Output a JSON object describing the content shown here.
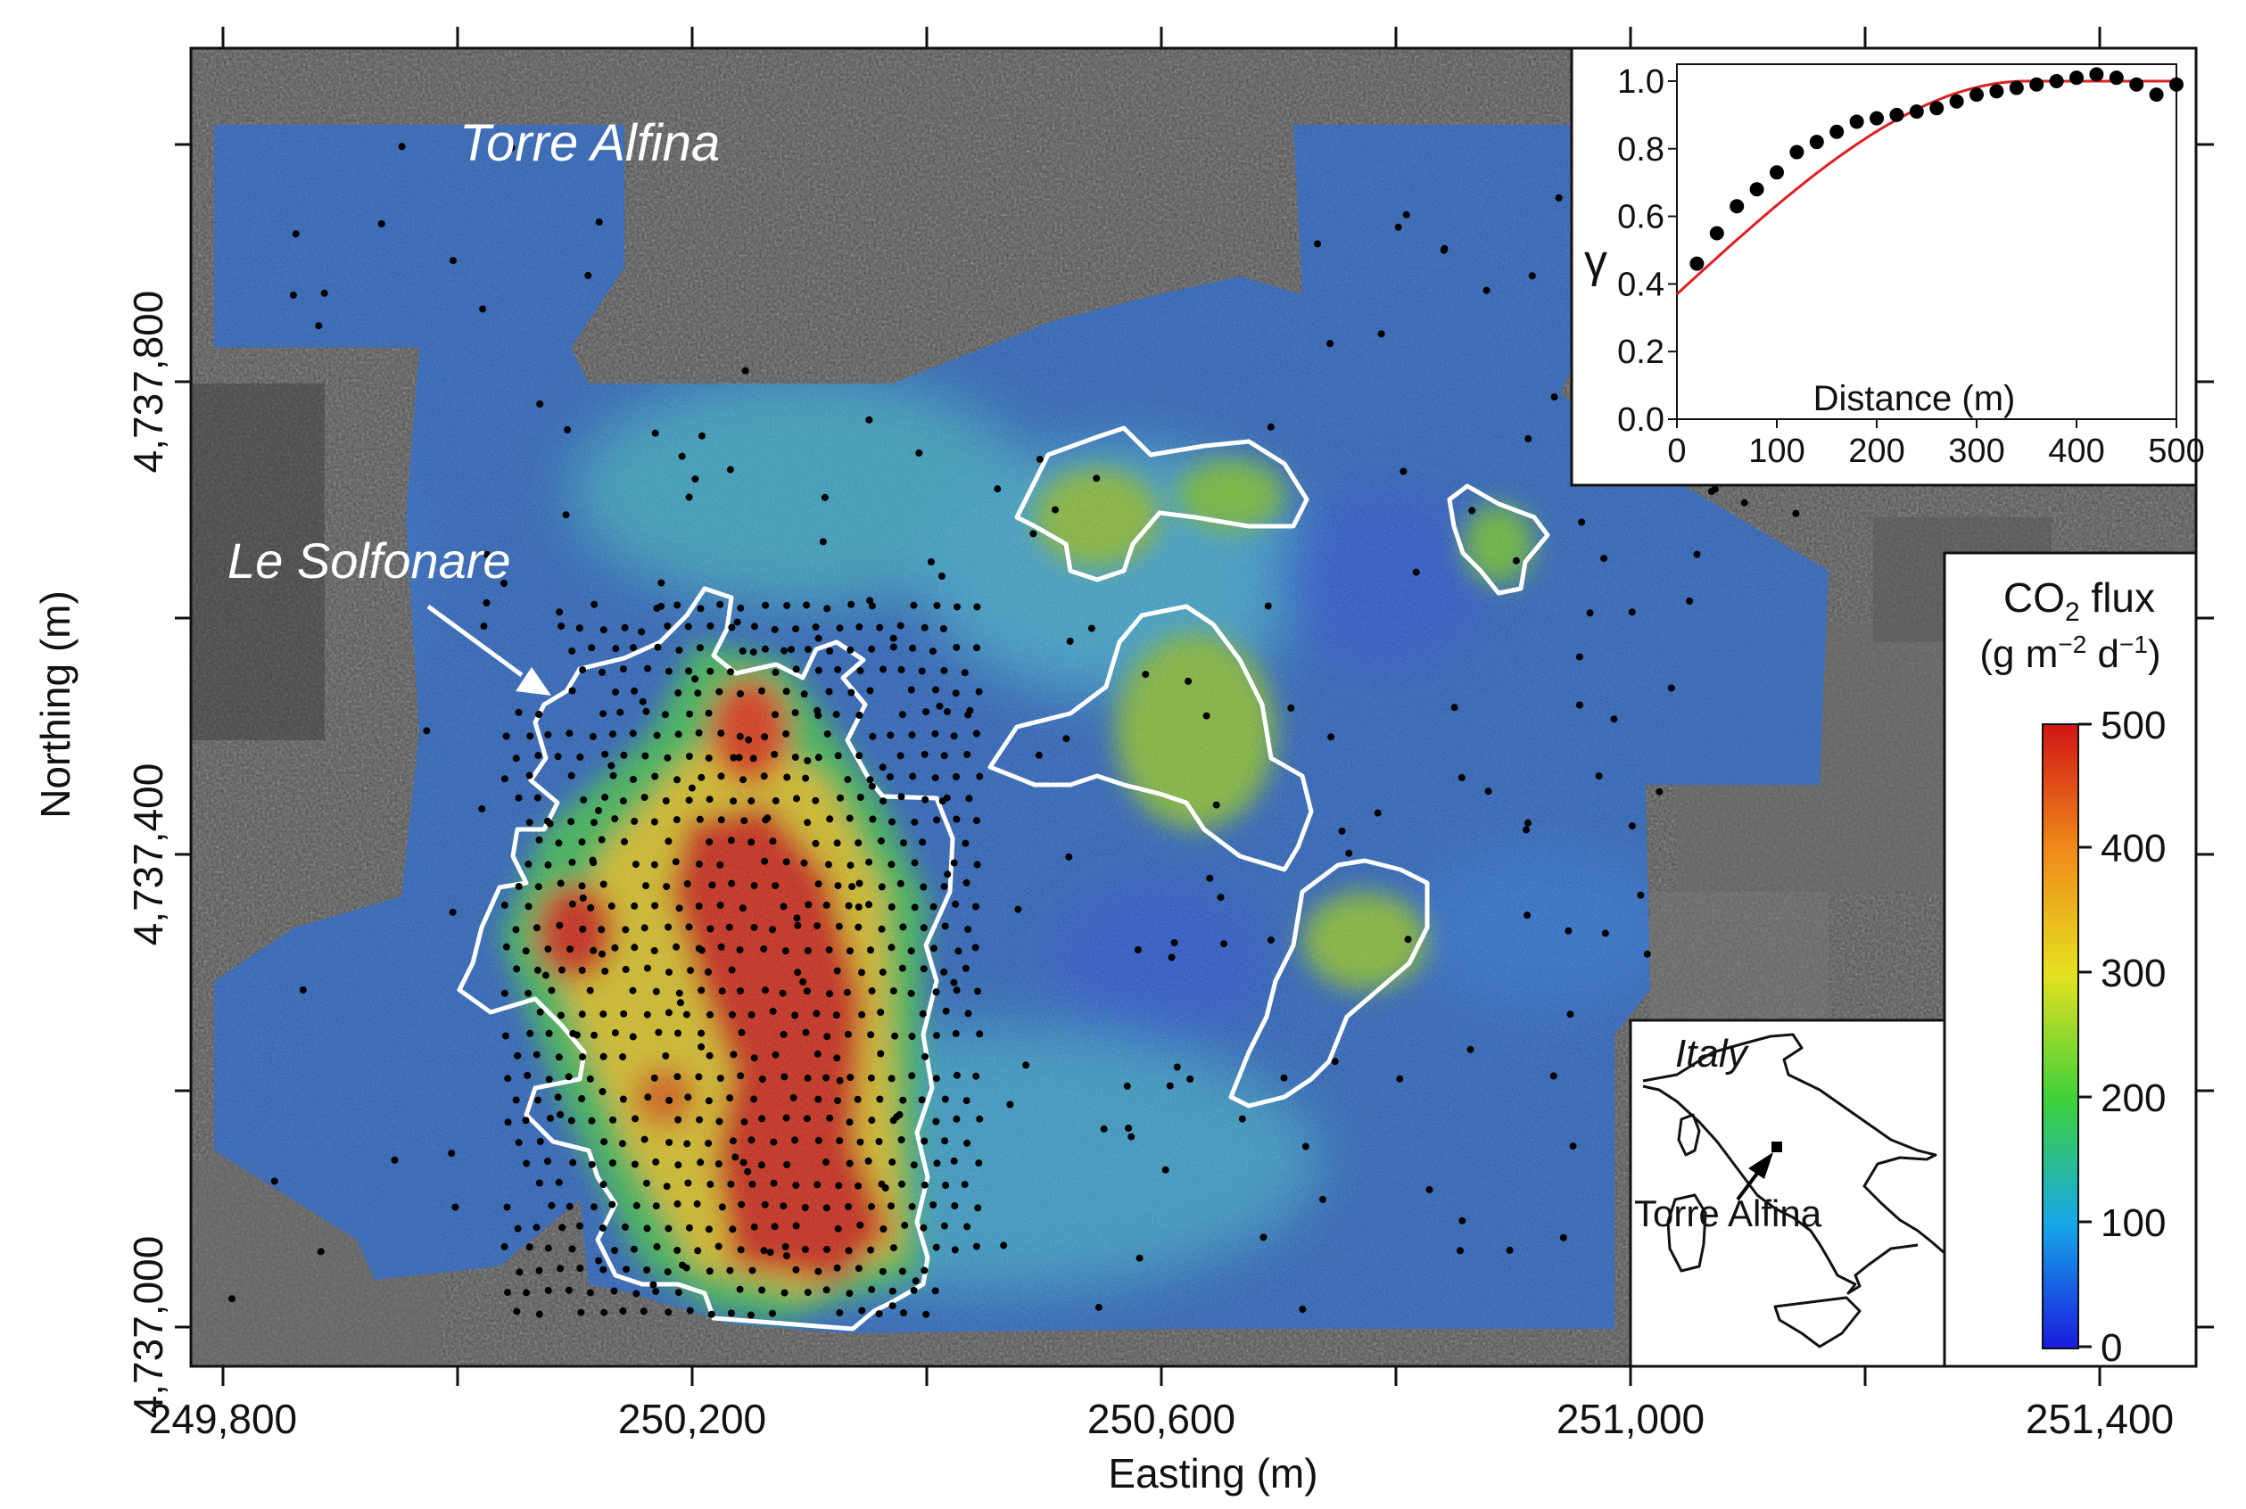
{
  "map": {
    "place_labels": {
      "town": "Torre Alfina",
      "site": "Le Solfonare"
    },
    "x_axis": {
      "label": "Easting (m)",
      "ticks": [
        "249,800",
        "250,200",
        "250,600",
        "251,000",
        "251,400"
      ]
    },
    "y_axis": {
      "label": "Northing (m)",
      "ticks": [
        "4,737,000",
        "4,737,400",
        "4,737,800"
      ]
    },
    "colorbar": {
      "title_part1": "CO",
      "title_sub": "2",
      "title_part2": " flux",
      "units": "(g m−2 d−1)",
      "units_pre": "(g m",
      "units_exp1": "−2",
      "units_mid": " d",
      "units_exp2": "−1",
      "units_post": ")",
      "ticks": [
        "0",
        "100",
        "200",
        "300",
        "400",
        "500"
      ],
      "min": 0,
      "max": 500,
      "colors": [
        "#1a1adf",
        "#17a8e8",
        "#3fd13a",
        "#e6e020",
        "#f08a1a",
        "#d01515"
      ]
    },
    "locator": {
      "country": "Italy",
      "town": "Torre Alfina"
    }
  },
  "chart_data": {
    "type": "scatter",
    "xlabel": "Distance (m)",
    "ylabel": "γ",
    "xlim": [
      0,
      500
    ],
    "ylim": [
      0,
      1.05
    ],
    "xticks": [
      "0",
      "100",
      "200",
      "300",
      "400",
      "500"
    ],
    "yticks": [
      "0.0",
      "0.2",
      "0.4",
      "0.6",
      "0.8",
      "1.0"
    ],
    "points": [
      {
        "x": 20,
        "y": 0.46
      },
      {
        "x": 40,
        "y": 0.55
      },
      {
        "x": 60,
        "y": 0.63
      },
      {
        "x": 80,
        "y": 0.68
      },
      {
        "x": 100,
        "y": 0.73
      },
      {
        "x": 120,
        "y": 0.79
      },
      {
        "x": 140,
        "y": 0.82
      },
      {
        "x": 160,
        "y": 0.85
      },
      {
        "x": 180,
        "y": 0.88
      },
      {
        "x": 200,
        "y": 0.89
      },
      {
        "x": 220,
        "y": 0.9
      },
      {
        "x": 240,
        "y": 0.91
      },
      {
        "x": 260,
        "y": 0.92
      },
      {
        "x": 280,
        "y": 0.94
      },
      {
        "x": 300,
        "y": 0.96
      },
      {
        "x": 320,
        "y": 0.97
      },
      {
        "x": 340,
        "y": 0.98
      },
      {
        "x": 360,
        "y": 0.99
      },
      {
        "x": 380,
        "y": 1.0
      },
      {
        "x": 400,
        "y": 1.01
      },
      {
        "x": 420,
        "y": 1.02
      },
      {
        "x": 440,
        "y": 1.01
      },
      {
        "x": 460,
        "y": 0.99
      },
      {
        "x": 480,
        "y": 0.96
      },
      {
        "x": 500,
        "y": 0.99
      }
    ],
    "fit": {
      "nugget": 0.37,
      "sill": 1.0,
      "range": 350,
      "color": "#dd2020"
    }
  }
}
